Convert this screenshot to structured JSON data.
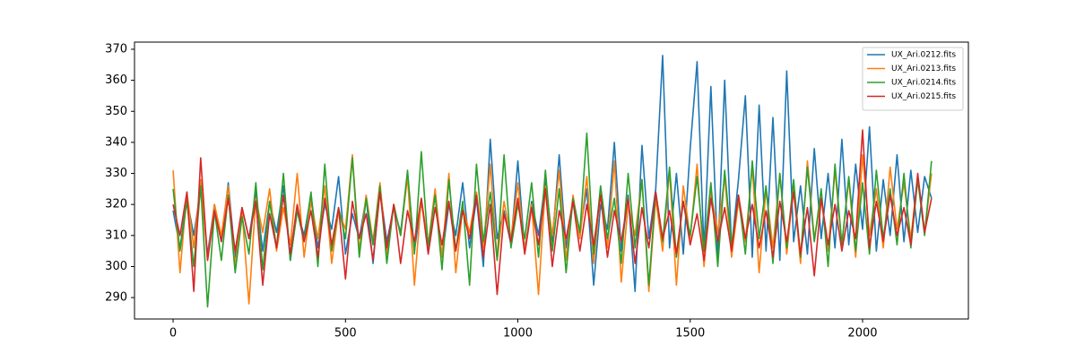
{
  "chart_data": {
    "type": "line",
    "x": [
      0,
      20,
      40,
      60,
      80,
      100,
      120,
      140,
      160,
      180,
      200,
      220,
      240,
      260,
      280,
      300,
      320,
      340,
      360,
      380,
      400,
      420,
      440,
      460,
      480,
      500,
      520,
      540,
      560,
      580,
      600,
      620,
      640,
      660,
      680,
      700,
      720,
      740,
      760,
      780,
      800,
      820,
      840,
      860,
      880,
      900,
      920,
      940,
      960,
      980,
      1000,
      1020,
      1040,
      1060,
      1080,
      1100,
      1120,
      1140,
      1160,
      1180,
      1200,
      1220,
      1240,
      1260,
      1280,
      1300,
      1320,
      1340,
      1360,
      1380,
      1400,
      1420,
      1440,
      1460,
      1480,
      1500,
      1520,
      1540,
      1560,
      1580,
      1600,
      1620,
      1640,
      1660,
      1680,
      1700,
      1720,
      1740,
      1760,
      1780,
      1800,
      1820,
      1840,
      1860,
      1880,
      1900,
      1920,
      1940,
      1960,
      1980,
      2000,
      2020,
      2040,
      2060,
      2080,
      2100,
      2120,
      2140,
      2160,
      2180,
      2200
    ],
    "series": [
      {
        "name": "UX_Ari.0212.fits",
        "color": "#1f77b4",
        "values": [
          318,
          306,
          322,
          310,
          325,
          304,
          320,
          308,
          327,
          303,
          319,
          309,
          324,
          305,
          321,
          311,
          326,
          302,
          318,
          310,
          323,
          306,
          320,
          312,
          329,
          304,
          317,
          309,
          322,
          301,
          325,
          308,
          319,
          311,
          330,
          305,
          321,
          307,
          324,
          303,
          320,
          310,
          327,
          306,
          322,
          300,
          341,
          309,
          318,
          307,
          334,
          305,
          321,
          310,
          328,
          308,
          336,
          306,
          322,
          311,
          325,
          294,
          320,
          312,
          340,
          305,
          323,
          292,
          339,
          309,
          325,
          368,
          306,
          330,
          304,
          338,
          366,
          305,
          358,
          303,
          360,
          306,
          328,
          355,
          303,
          352,
          305,
          348,
          302,
          363,
          308,
          326,
          304,
          338,
          309,
          330,
          306,
          341,
          307,
          333,
          312,
          345,
          305,
          328,
          310,
          336,
          308,
          331,
          311,
          329,
          322
        ]
      },
      {
        "name": "UX_Ari.0213.fits",
        "color": "#ff7f0e",
        "values": [
          331,
          298,
          324,
          306,
          328,
          302,
          320,
          310,
          326,
          300,
          318,
          288,
          322,
          311,
          325,
          305,
          319,
          307,
          330,
          303,
          321,
          309,
          326,
          301,
          318,
          312,
          336,
          305,
          323,
          308,
          327,
          304,
          320,
          310,
          329,
          294,
          322,
          307,
          325,
          303,
          330,
          298,
          319,
          311,
          324,
          306,
          333,
          302,
          321,
          309,
          327,
          305,
          320,
          291,
          326,
          310,
          331,
          302,
          323,
          309,
          329,
          301,
          324,
          306,
          334,
          295,
          320,
          310,
          328,
          292,
          322,
          305,
          331,
          294,
          326,
          309,
          333,
          300,
          324,
          311,
          329,
          303,
          321,
          308,
          332,
          298,
          325,
          306,
          330,
          304,
          326,
          301,
          334,
          309,
          322,
          305,
          331,
          307,
          328,
          303,
          336,
          310,
          325,
          306,
          332,
          312,
          327,
          309,
          329,
          311,
          330
        ]
      },
      {
        "name": "UX_Ari.0214.fits",
        "color": "#2ca02c",
        "values": [
          325,
          305,
          321,
          300,
          326,
          287,
          318,
          302,
          323,
          298,
          316,
          304,
          327,
          299,
          321,
          306,
          330,
          302,
          318,
          308,
          324,
          300,
          333,
          305,
          319,
          309,
          335,
          303,
          322,
          307,
          326,
          301,
          320,
          310,
          331,
          304,
          337,
          306,
          323,
          299,
          328,
          305,
          321,
          294,
          333,
          308,
          324,
          302,
          336,
          306,
          320,
          309,
          327,
          303,
          331,
          305,
          325,
          298,
          322,
          311,
          343,
          304,
          326,
          309,
          322,
          301,
          330,
          306,
          328,
          294,
          324,
          308,
          332,
          303,
          321,
          310,
          329,
          305,
          327,
          300,
          331,
          307,
          323,
          304,
          334,
          309,
          326,
          301,
          330,
          306,
          328,
          303,
          332,
          308,
          325,
          300,
          333,
          307,
          329,
          305,
          327,
          304,
          331,
          309,
          325,
          307,
          330,
          306,
          328,
          310,
          334
        ]
      },
      {
        "name": "UX_Ari.0215.fits",
        "color": "#d62728",
        "values": [
          320,
          310,
          324,
          292,
          335,
          302,
          318,
          308,
          322,
          305,
          319,
          309,
          321,
          294,
          317,
          306,
          323,
          304,
          320,
          308,
          318,
          303,
          322,
          307,
          319,
          296,
          321,
          309,
          317,
          302,
          324,
          306,
          320,
          301,
          318,
          308,
          322,
          304,
          319,
          307,
          321,
          305,
          318,
          309,
          323,
          303,
          320,
          291,
          317,
          308,
          322,
          304,
          319,
          307,
          325,
          300,
          318,
          309,
          321,
          305,
          320,
          307,
          323,
          303,
          318,
          308,
          322,
          301,
          319,
          306,
          324,
          309,
          318,
          304,
          321,
          307,
          317,
          302,
          322,
          308,
          319,
          305,
          323,
          309,
          320,
          306,
          318,
          303,
          321,
          308,
          324,
          304,
          319,
          297,
          322,
          307,
          320,
          305,
          318,
          309,
          344,
          306,
          321,
          308,
          323,
          310,
          319,
          307,
          330,
          311,
          322
        ]
      }
    ],
    "xlim": [
      -112,
      2307
    ],
    "ylim": [
      283.1,
      372.3
    ],
    "xticks": [
      0,
      500,
      1000,
      1500,
      2000
    ],
    "yticks": [
      290,
      300,
      310,
      320,
      330,
      340,
      350,
      360,
      370
    ],
    "legend": "upper right"
  }
}
